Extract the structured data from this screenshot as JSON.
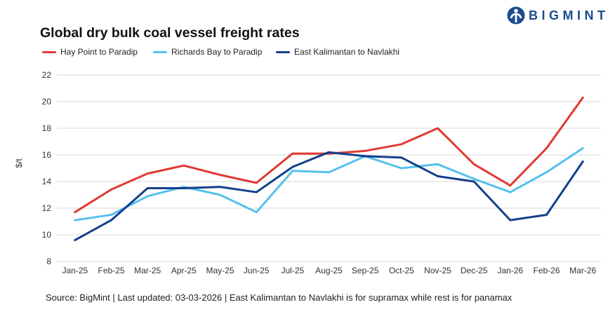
{
  "logo": {
    "text": "BIGMINT",
    "icon": "bigmint-globe-figure-icon",
    "color": "#1c4b8f"
  },
  "chart_data": {
    "type": "line",
    "title": "Global dry bulk coal vessel freight rates",
    "ylabel": "$/t",
    "ylim": [
      8,
      22
    ],
    "yticks": [
      8,
      10,
      12,
      14,
      16,
      18,
      20,
      22
    ],
    "grid": true,
    "legend_position": "top-left",
    "categories": [
      "Jan-25",
      "Feb-25",
      "Mar-25",
      "Apr-25",
      "May-25",
      "Jun-25",
      "Jul-25",
      "Aug-25",
      "Sep-25",
      "Oct-25",
      "Nov-25",
      "Dec-25",
      "Jan-26",
      "Feb-26",
      "Mar-26"
    ],
    "series": [
      {
        "name": "Hay Point to Paradip",
        "color": "#e03a33",
        "values": [
          11.7,
          13.4,
          14.6,
          15.2,
          14.5,
          13.9,
          16.1,
          16.1,
          16.3,
          16.8,
          18.0,
          15.3,
          13.7,
          16.5,
          20.3
        ]
      },
      {
        "name": "Richards Bay to Paradip",
        "color": "#55c1ee",
        "values": [
          11.1,
          11.5,
          12.9,
          13.6,
          13.0,
          11.7,
          14.8,
          14.7,
          15.9,
          15.0,
          15.3,
          14.2,
          13.2,
          14.7,
          16.5
        ]
      },
      {
        "name": "East Kalimantan to Navlakhi",
        "color": "#13408a",
        "values": [
          9.6,
          11.1,
          13.5,
          13.5,
          13.6,
          13.2,
          15.1,
          16.2,
          15.9,
          15.8,
          14.4,
          14.0,
          11.1,
          11.5,
          15.5
        ]
      }
    ]
  },
  "footer": {
    "source": "Source: BigMint | Last updated: 03-03-2026 | East Kalimantan to Navlakhi is for supramax while rest is for panamax"
  }
}
